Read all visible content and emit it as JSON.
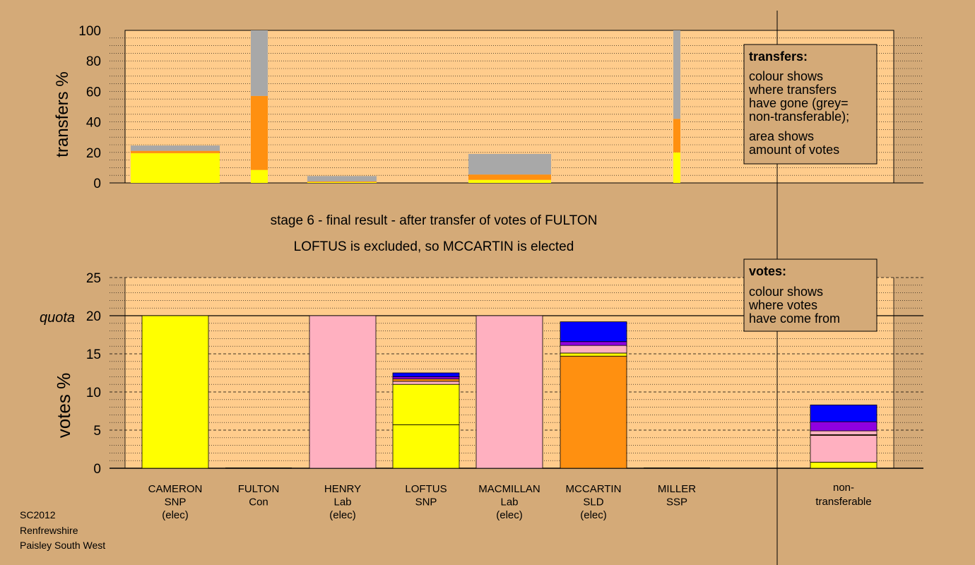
{
  "colors": {
    "background": "#d4aa78",
    "plot_bg": "#ffcc8c",
    "SNP": "#ffff00",
    "Lab": "#ffb0c0",
    "SLD": "#ff9010",
    "Con": "#0000ff",
    "SSP": "#9000e0",
    "non_transferable": "#a8a8a8"
  },
  "titles": {
    "line1": "stage 6 - final result - after transfer of votes of FULTON",
    "line2": "LOFTUS is excluded, so MCCARTIN is elected"
  },
  "footer": [
    "SC2012",
    "Renfrewshire",
    "Paisley South West"
  ],
  "legend_transfers": {
    "heading": "transfers:",
    "lines1": [
      "colour shows",
      "where transfers",
      "have gone (grey=",
      "non-transferable);"
    ],
    "lines2": [
      "area shows",
      "amount of votes"
    ]
  },
  "legend_votes": {
    "heading": "votes:",
    "lines": [
      "colour shows",
      "where votes",
      "have come from"
    ]
  },
  "chart_data": [
    {
      "type": "bar",
      "subtype": "stacked",
      "ylabel": "transfers %",
      "ylim": [
        0,
        100
      ],
      "yticks": [
        0,
        20,
        40,
        60,
        80,
        100
      ],
      "grid": "dotted",
      "bars": [
        {
          "segments": [
            {
              "party": "SNP",
              "value": 19.5
            },
            {
              "party": "SLD",
              "value": 1.5
            },
            {
              "party": "non_transferable",
              "value": 3.5
            }
          ]
        },
        {
          "segments": [
            {
              "party": "SNP",
              "value": 8.5
            },
            {
              "party": "SLD",
              "value": 48.5
            },
            {
              "party": "non_transferable",
              "value": 43
            }
          ]
        },
        {
          "segments": [
            {
              "party": "SNP",
              "value": 0.5
            },
            {
              "party": "SLD",
              "value": 0.5
            },
            {
              "party": "non_transferable",
              "value": 3.5
            }
          ]
        },
        {
          "segments": [
            {
              "party": "SNP",
              "value": 2
            },
            {
              "party": "SLD",
              "value": 3.5
            },
            {
              "party": "non_transferable",
              "value": 13.5
            }
          ]
        },
        {
          "segments": [
            {
              "party": "SNP",
              "value": 20
            },
            {
              "party": "SLD",
              "value": 22
            },
            {
              "party": "non_transferable",
              "value": 58
            }
          ]
        }
      ]
    },
    {
      "type": "bar",
      "subtype": "stacked",
      "ylabel": "votes %",
      "ylim": [
        0,
        25
      ],
      "yticks": [
        0,
        5,
        10,
        15,
        20,
        25
      ],
      "quota": 20,
      "quota_label": "quota",
      "grid": "dashed",
      "categories": [
        {
          "name": "CAMERON",
          "party": "SNP",
          "status": "(elec)"
        },
        {
          "name": "FULTON",
          "party": "Con",
          "status": ""
        },
        {
          "name": "HENRY",
          "party": "Lab",
          "status": "(elec)"
        },
        {
          "name": "LOFTUS",
          "party": "SNP",
          "status": ""
        },
        {
          "name": "MACMILLAN",
          "party": "Lab",
          "status": "(elec)"
        },
        {
          "name": "MCCARTIN",
          "party": "SLD",
          "status": "(elec)"
        },
        {
          "name": "MILLER",
          "party": "SSP",
          "status": ""
        }
      ],
      "nontransferable_label": [
        "non-",
        "transferable"
      ],
      "stacks": [
        [
          {
            "party": "SNP",
            "value": 20
          }
        ],
        [],
        [
          {
            "party": "Lab",
            "value": 20
          }
        ],
        [
          {
            "party": "SNP",
            "value": 5.7
          },
          {
            "party": "SNP",
            "value": 5.3
          },
          {
            "party": "Lab",
            "value": 0.4
          },
          {
            "party": "SLD",
            "value": 0.3
          },
          {
            "party": "SSP",
            "value": 0.3
          },
          {
            "party": "Con",
            "value": 0.5
          }
        ],
        [
          {
            "party": "Lab",
            "value": 20
          }
        ],
        [
          {
            "party": "SLD",
            "value": 14.7
          },
          {
            "party": "SNP",
            "value": 0.4
          },
          {
            "party": "Lab",
            "value": 1
          },
          {
            "party": "SSP",
            "value": 0.5
          },
          {
            "party": "Con",
            "value": 2.6
          }
        ],
        [],
        [
          {
            "party": "SNP",
            "value": 0.8
          },
          {
            "party": "Lab",
            "value": 3.5
          },
          {
            "party": "SLD",
            "value": 0.1
          },
          {
            "party": "Lab",
            "value": 0.5
          },
          {
            "party": "SSP",
            "value": 1.2
          },
          {
            "party": "Con",
            "value": 2.2
          }
        ]
      ]
    }
  ]
}
